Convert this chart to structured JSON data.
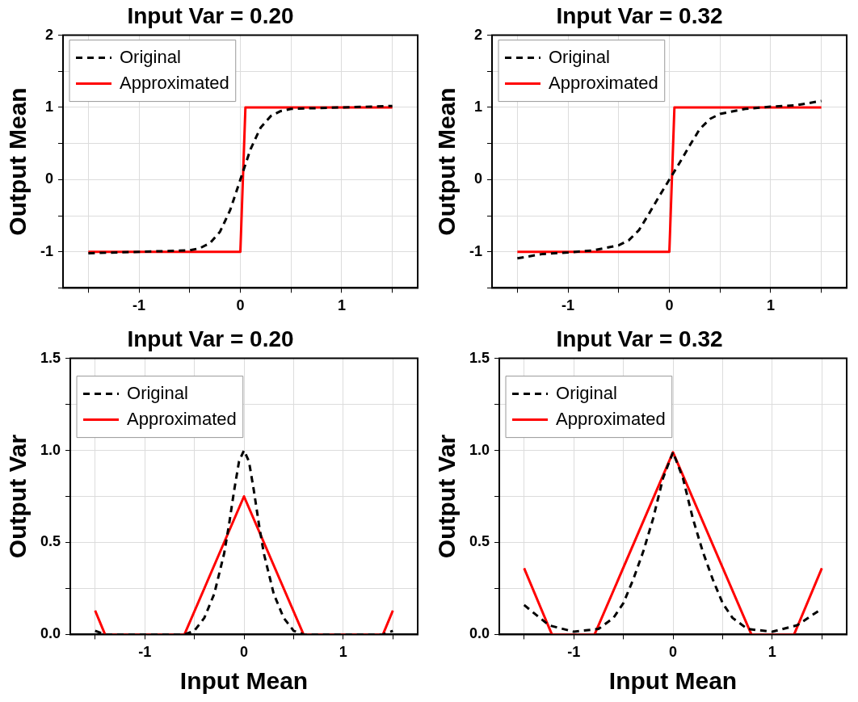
{
  "chart_data": [
    {
      "type": "line",
      "title": "Input Var = 0.20",
      "ylabel": "Output Mean",
      "xlim": [
        -1.75,
        1.75
      ],
      "ylim": [
        -1.5,
        2
      ],
      "xticks": [
        {
          "value": -1.5,
          "label": null
        },
        -1,
        {
          "value": -0.5,
          "label": null
        },
        0,
        {
          "value": 0.5,
          "label": null
        },
        1,
        {
          "value": 1.5,
          "label": null
        }
      ],
      "yticks": [
        {
          "value": -1.5,
          "label": null
        },
        -1,
        {
          "value": -0.5,
          "label": null
        },
        0,
        {
          "value": 0.5,
          "label": null
        },
        1,
        {
          "value": 1.5,
          "label": null
        },
        2
      ],
      "grid": true,
      "legend": "top left",
      "marker": "none",
      "series": [
        {
          "name": "Original",
          "color": "#000000",
          "line_style": "dashed",
          "x": [
            -1.5,
            -1.0,
            -0.75,
            -0.5,
            -0.4,
            -0.3,
            -0.2,
            -0.1,
            0,
            0.1,
            0.2,
            0.3,
            0.4,
            0.5,
            0.75,
            1.0,
            1.5
          ],
          "values": [
            -1.02,
            -1.0,
            -0.99,
            -0.98,
            -0.95,
            -0.88,
            -0.72,
            -0.42,
            0,
            0.42,
            0.72,
            0.88,
            0.95,
            0.98,
            0.99,
            1.0,
            1.02
          ]
        },
        {
          "name": "Approximated",
          "color": "#ff0000",
          "line_style": "solid",
          "x": [
            -1.5,
            0,
            0.05,
            1.5
          ],
          "values": [
            -1,
            -1,
            1,
            1
          ]
        }
      ]
    },
    {
      "type": "line",
      "title": "Input Var = 0.32",
      "ylabel": "Output Mean",
      "xlim": [
        -1.75,
        1.75
      ],
      "ylim": [
        -1.5,
        2
      ],
      "xticks": [
        {
          "value": -1.5,
          "label": null
        },
        -1,
        {
          "value": -0.5,
          "label": null
        },
        0,
        {
          "value": 0.5,
          "label": null
        },
        1,
        {
          "value": 1.5,
          "label": null
        }
      ],
      "yticks": [
        {
          "value": -1.5,
          "label": null
        },
        -1,
        {
          "value": -0.5,
          "label": null
        },
        0,
        {
          "value": 0.5,
          "label": null
        },
        1,
        {
          "value": 1.5,
          "label": null
        },
        2
      ],
      "grid": true,
      "legend": "top left",
      "marker": "none",
      "series": [
        {
          "name": "Original",
          "color": "#000000",
          "line_style": "dashed",
          "x": [
            -1.5,
            -1.25,
            -1.0,
            -0.75,
            -0.5,
            -0.4,
            -0.3,
            -0.2,
            -0.1,
            0,
            0.1,
            0.2,
            0.3,
            0.4,
            0.5,
            0.75,
            1.0,
            1.25,
            1.5
          ],
          "values": [
            -1.09,
            -1.03,
            -1.01,
            -0.98,
            -0.91,
            -0.84,
            -0.7,
            -0.47,
            -0.23,
            0,
            0.23,
            0.47,
            0.7,
            0.84,
            0.91,
            0.98,
            1.01,
            1.03,
            1.09
          ]
        },
        {
          "name": "Approximated",
          "color": "#ff0000",
          "line_style": "solid",
          "x": [
            -1.5,
            0,
            0.05,
            1.5
          ],
          "values": [
            -1,
            -1,
            1,
            1
          ]
        }
      ]
    },
    {
      "type": "line",
      "title": "Input Var = 0.20",
      "xlabel": "Input Mean",
      "ylabel": "Output Var",
      "xlim": [
        -1.75,
        1.75
      ],
      "ylim": [
        0,
        1.5
      ],
      "xticks": [
        {
          "value": -1.5,
          "label": null
        },
        -1,
        {
          "value": -0.5,
          "label": null
        },
        0,
        {
          "value": 0.5,
          "label": null
        },
        1,
        {
          "value": 1.5,
          "label": null
        }
      ],
      "yticks": [
        {
          "value": 0,
          "label": "0.0"
        },
        {
          "value": 0.25,
          "label": null
        },
        0.5,
        {
          "value": 0.75,
          "label": null
        },
        {
          "value": 1,
          "label": "1.0"
        },
        {
          "value": 1.25,
          "label": null
        },
        1.5
      ],
      "grid": true,
      "legend": "top left",
      "marker": "none",
      "series": [
        {
          "name": "Original",
          "color": "#000000",
          "line_style": "dashed",
          "x": [
            -1.5,
            -1.4,
            -1.0,
            -0.6,
            -0.5,
            -0.4,
            -0.3,
            -0.2,
            -0.15,
            -0.1,
            -0.05,
            0,
            0.05,
            0.1,
            0.15,
            0.2,
            0.3,
            0.4,
            0.5,
            0.6,
            1.0,
            1.4,
            1.5
          ],
          "values": [
            0.02,
            0,
            0,
            0,
            0.02,
            0.09,
            0.22,
            0.44,
            0.6,
            0.78,
            0.94,
            1.0,
            0.94,
            0.78,
            0.6,
            0.44,
            0.22,
            0.09,
            0.02,
            0,
            0,
            0,
            0.02
          ]
        },
        {
          "name": "Approximated",
          "color": "#ff0000",
          "line_style": "solid",
          "x": [
            -1.5,
            -1.4,
            -0.6,
            0,
            0.6,
            1.4,
            1.5
          ],
          "values": [
            0.13,
            0,
            0,
            0.75,
            0,
            0,
            0.13
          ]
        }
      ]
    },
    {
      "type": "line",
      "title": "Input Var = 0.32",
      "xlabel": "Input Mean",
      "ylabel": "Output Var",
      "xlim": [
        -1.75,
        1.75
      ],
      "ylim": [
        0,
        1.5
      ],
      "xticks": [
        {
          "value": -1.5,
          "label": null
        },
        -1,
        {
          "value": -0.5,
          "label": null
        },
        0,
        {
          "value": 0.5,
          "label": null
        },
        1,
        {
          "value": 1.5,
          "label": null
        }
      ],
      "yticks": [
        {
          "value": 0,
          "label": "0.0"
        },
        {
          "value": 0.25,
          "label": null
        },
        0.5,
        {
          "value": 0.75,
          "label": null
        },
        {
          "value": 1,
          "label": "1.0"
        },
        {
          "value": 1.25,
          "label": null
        },
        1.5
      ],
      "grid": true,
      "legend": "top left",
      "marker": "none",
      "series": [
        {
          "name": "Original",
          "color": "#000000",
          "line_style": "dashed",
          "x": [
            -1.5,
            -1.25,
            -1.0,
            -0.75,
            -0.6,
            -0.5,
            -0.4,
            -0.3,
            -0.2,
            -0.1,
            0,
            0.1,
            0.2,
            0.3,
            0.4,
            0.5,
            0.6,
            0.75,
            1.0,
            1.25,
            1.5
          ],
          "values": [
            0.16,
            0.05,
            0.015,
            0.03,
            0.09,
            0.17,
            0.3,
            0.45,
            0.63,
            0.85,
            0.99,
            0.85,
            0.63,
            0.45,
            0.3,
            0.17,
            0.09,
            0.03,
            0.015,
            0.05,
            0.14
          ]
        },
        {
          "name": "Approximated",
          "color": "#ff0000",
          "line_style": "solid",
          "x": [
            -1.5,
            -1.22,
            -0.79,
            0,
            0.79,
            1.22,
            1.5
          ],
          "values": [
            0.36,
            0,
            0,
            0.99,
            0,
            0,
            0.36
          ]
        }
      ]
    }
  ]
}
